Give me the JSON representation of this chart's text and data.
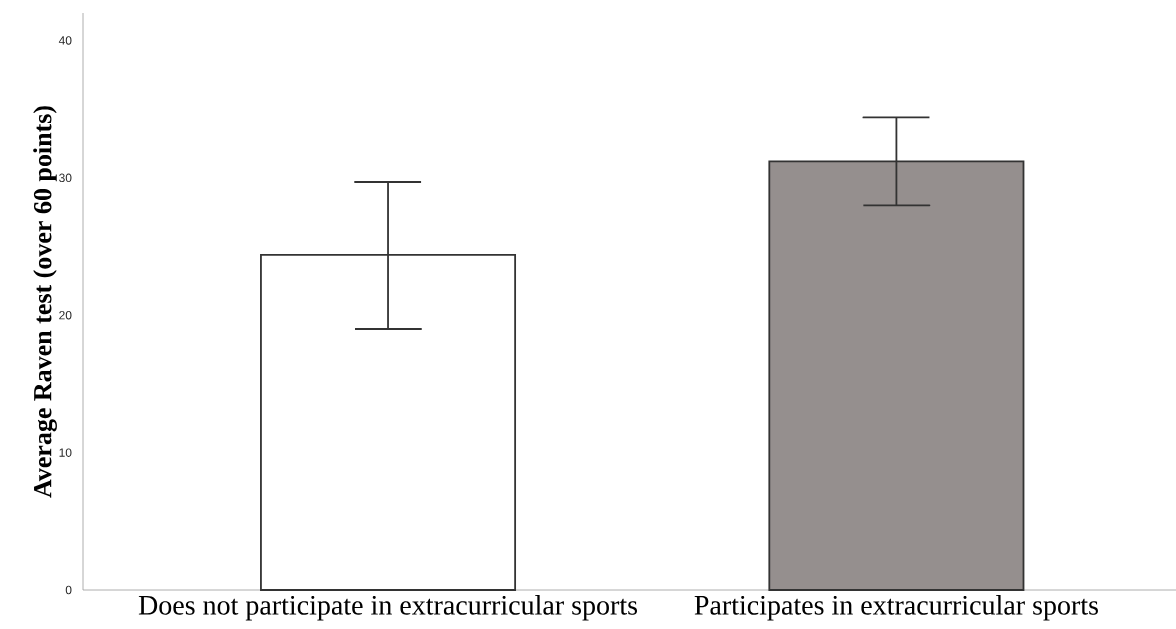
{
  "chart_data": {
    "type": "bar",
    "ylabel": "Average Raven test (over 60 points)",
    "categories": [
      "Does not participate in extracurricular sports",
      "Participates in extracurricular sports"
    ],
    "values": [
      24.4,
      31.2
    ],
    "colors": [
      "#ffffff",
      "#958f8e"
    ],
    "errors": [
      [
        19.0,
        29.7
      ],
      [
        28.0,
        34.4
      ]
    ],
    "ylim": [
      0,
      42
    ],
    "yticks": [
      0,
      10,
      20,
      30,
      40
    ]
  }
}
